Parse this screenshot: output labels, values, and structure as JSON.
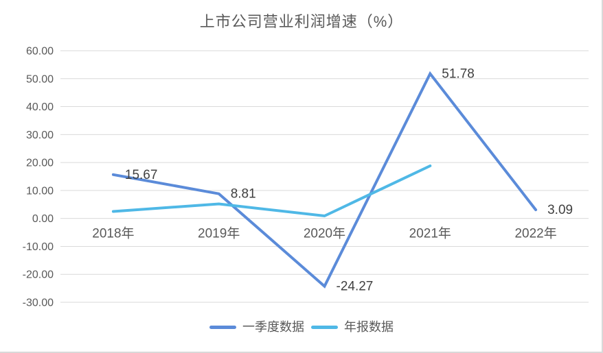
{
  "chart_data": {
    "type": "line",
    "title": "上市公司营业利润增速（%）",
    "categories": [
      "2018年",
      "2019年",
      "2020年",
      "2021年",
      "2022年"
    ],
    "series": [
      {
        "name": "一季度数据",
        "color": "#5B8BD9",
        "values": [
          15.67,
          8.81,
          -24.27,
          51.78,
          3.09
        ],
        "data_labels": [
          "15.67",
          "8.81",
          "-24.27",
          "51.78",
          "3.09"
        ]
      },
      {
        "name": "年报数据",
        "color": "#4FB8E6",
        "values": [
          2.5,
          5.2,
          0.9,
          18.8,
          null
        ],
        "data_labels": null
      }
    ],
    "ylim": [
      -30,
      60
    ],
    "ytick_step": 10,
    "ytick_decimals": 2,
    "grid": "horizontal-only",
    "legend_position": "bottom",
    "styles": {
      "grid_color": "#D9D9D9",
      "axis_text_color": "#595959",
      "data_label_color": "#404040",
      "title_color": "#595959",
      "background": "#FFFFFF",
      "border_color": "#D9D9D9"
    }
  }
}
